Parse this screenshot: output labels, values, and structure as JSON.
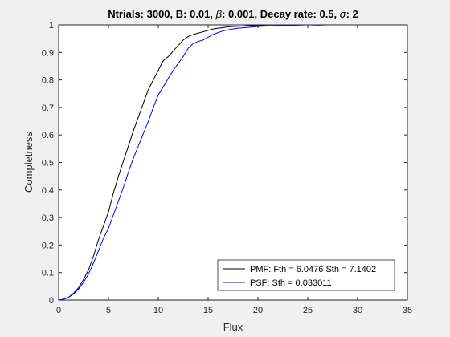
{
  "chart_data": {
    "type": "line",
    "title_parts": [
      {
        "text": "Ntrials: 3000, B: 0.01, ",
        "italic": false
      },
      {
        "text": "β",
        "italic": true
      },
      {
        "text": ": 0.001, Decay rate: 0.5, ",
        "italic": false
      },
      {
        "text": "σ",
        "italic": true
      },
      {
        "text": ": 2",
        "italic": false
      }
    ],
    "xlabel": "Flux",
    "ylabel": "Completness",
    "xlim": [
      0,
      35
    ],
    "ylim": [
      0,
      1
    ],
    "xticks": [
      0,
      5,
      10,
      15,
      20,
      25,
      30,
      35
    ],
    "yticks": [
      0,
      0.1,
      0.2,
      0.3,
      0.4,
      0.5,
      0.6,
      0.7,
      0.8,
      0.9,
      1
    ],
    "legend_position": "bottom-right",
    "series": [
      {
        "name": "PMF: Fth = 6.0476 Sth = 7.1402",
        "color": "#000000",
        "x": [
          0,
          0.5,
          1,
          1.5,
          2,
          2.5,
          3,
          3.5,
          4,
          4.5,
          5,
          5.5,
          6,
          6.5,
          7,
          7.5,
          8,
          8.5,
          9,
          9.5,
          10,
          10.5,
          11,
          11.5,
          12,
          12.5,
          13,
          13.5,
          14,
          14.5,
          15,
          15.5,
          16,
          16.5,
          17,
          18,
          19,
          20,
          21,
          22,
          23,
          25,
          27,
          29
        ],
        "y": [
          0,
          0.003,
          0.01,
          0.025,
          0.045,
          0.075,
          0.11,
          0.16,
          0.22,
          0.27,
          0.32,
          0.39,
          0.45,
          0.505,
          0.56,
          0.615,
          0.665,
          0.715,
          0.765,
          0.8,
          0.835,
          0.87,
          0.885,
          0.905,
          0.925,
          0.945,
          0.958,
          0.965,
          0.97,
          0.975,
          0.98,
          0.985,
          0.988,
          0.99,
          0.993,
          0.995,
          0.997,
          0.998,
          0.999,
          1.0,
          1.0,
          1.0,
          1.0,
          1.0
        ]
      },
      {
        "name": "PSF: Sth = 0.033011",
        "color": "#0000ff",
        "x": [
          0,
          0.5,
          1,
          1.5,
          2,
          2.5,
          3,
          3.5,
          4,
          4.5,
          5,
          5.5,
          6,
          6.5,
          7,
          7.5,
          8,
          8.5,
          9,
          9.5,
          10,
          10.5,
          11,
          11.5,
          12,
          12.5,
          13,
          13.5,
          14,
          14.5,
          15,
          15.5,
          16,
          16.5,
          17,
          17.5,
          18,
          19,
          20,
          21,
          22,
          23,
          24,
          25,
          26,
          27,
          28,
          29
        ],
        "y": [
          0,
          0.003,
          0.01,
          0.022,
          0.04,
          0.065,
          0.095,
          0.135,
          0.18,
          0.225,
          0.26,
          0.31,
          0.36,
          0.41,
          0.465,
          0.515,
          0.56,
          0.605,
          0.65,
          0.7,
          0.745,
          0.775,
          0.805,
          0.835,
          0.86,
          0.885,
          0.915,
          0.932,
          0.94,
          0.945,
          0.955,
          0.965,
          0.972,
          0.978,
          0.982,
          0.985,
          0.988,
          0.991,
          0.994,
          0.996,
          0.997,
          0.998,
          0.999,
          1.0,
          0.999,
          1.0,
          1.0,
          1.0
        ]
      }
    ]
  }
}
